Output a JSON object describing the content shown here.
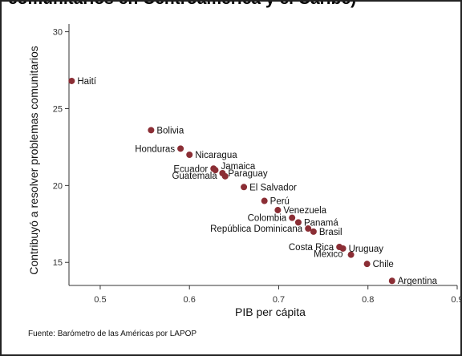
{
  "chart_data": {
    "type": "scatter",
    "title": "",
    "title_partial": "comunitarios en Centroamérica y el Caribe)",
    "xlabel": "PIB per cápita",
    "ylabel": "Contribuyó a resolver problemas comunitarios",
    "xlim": [
      0.465,
      0.9
    ],
    "ylim": [
      13.5,
      30.5
    ],
    "xticks": [
      0.5,
      0.6,
      0.7,
      0.8,
      0.9
    ],
    "xtick_labels": [
      "0.5",
      "0.6",
      "0.7",
      "0.8",
      "0.9"
    ],
    "yticks": [
      15,
      20,
      25,
      30
    ],
    "ytick_labels": [
      "15",
      "20",
      "25",
      "30"
    ],
    "grid": false,
    "legend": "none",
    "marker_color": "#8B2E35",
    "points": [
      {
        "label": "Haití",
        "x": 0.468,
        "y": 26.8
      },
      {
        "label": "Bolivia",
        "x": 0.557,
        "y": 23.6
      },
      {
        "label": "Honduras",
        "x": 0.59,
        "y": 22.4
      },
      {
        "label": "Nicaragua",
        "x": 0.6,
        "y": 22.0
      },
      {
        "label": "Ecuador",
        "x": 0.627,
        "y": 21.1
      },
      {
        "label": "Jamaica",
        "x": 0.629,
        "y": 21.0
      },
      {
        "label": "Paraguay",
        "x": 0.637,
        "y": 20.8
      },
      {
        "label": "Guatemala",
        "x": 0.64,
        "y": 20.6
      },
      {
        "label": "El Salvador",
        "x": 0.661,
        "y": 19.9
      },
      {
        "label": "Perú",
        "x": 0.684,
        "y": 19.0
      },
      {
        "label": "Venezuela",
        "x": 0.699,
        "y": 18.4
      },
      {
        "label": "Colombia",
        "x": 0.715,
        "y": 17.9
      },
      {
        "label": "Panamá",
        "x": 0.722,
        "y": 17.6
      },
      {
        "label": "República Dominicana",
        "x": 0.733,
        "y": 17.2
      },
      {
        "label": "Brasil",
        "x": 0.739,
        "y": 17.0
      },
      {
        "label": "Costa Rica",
        "x": 0.768,
        "y": 16.0
      },
      {
        "label": "Uruguay",
        "x": 0.772,
        "y": 15.9
      },
      {
        "label": "México",
        "x": 0.781,
        "y": 15.5
      },
      {
        "label": "Chile",
        "x": 0.799,
        "y": 14.9
      },
      {
        "label": "Argentina",
        "x": 0.827,
        "y": 13.8
      }
    ]
  },
  "source": "Fuente: Barómetro de las Américas por LAPOP"
}
